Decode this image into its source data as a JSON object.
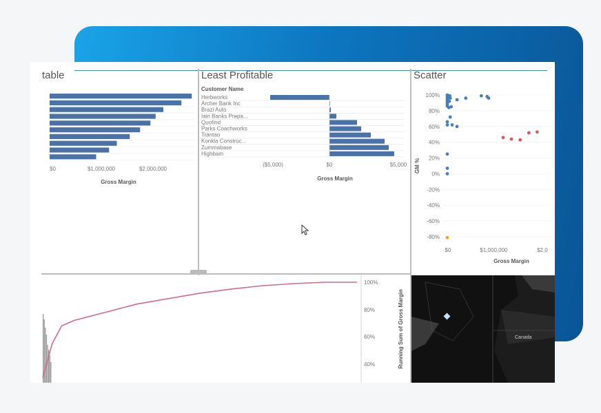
{
  "panels": {
    "most_profitable": {
      "title": "table"
    },
    "least_profitable": {
      "title": "Least Profitable",
      "column_header": "Customer Name"
    },
    "scatter": {
      "title": "Scatter"
    },
    "map": {
      "label": "Canada"
    }
  },
  "chart_data": [
    {
      "type": "bar",
      "title": "table",
      "xlabel": "Gross Margin",
      "x_ticks": [
        "$0",
        "$1,000,000",
        "$2,000,000"
      ],
      "xlim": [
        0,
        2800000
      ],
      "values": [
        2750000,
        2550000,
        2200000,
        2050000,
        1950000,
        1750000,
        1550000,
        1300000,
        1150000,
        900000
      ]
    },
    {
      "type": "bar",
      "title": "Least Profitable",
      "xlabel": "Gross Margin",
      "categories": [
        "Herbworks",
        "Archer Bank Inc",
        "Brazi Auto",
        "Iain Banks Prepa...",
        "Quofind",
        "Parks Coachworks",
        "Trantao",
        "Konkla Construc...",
        "Zummabase",
        "Highbam"
      ],
      "values": [
        -4300,
        0,
        100,
        500,
        2000,
        2300,
        3000,
        4000,
        4300,
        4700
      ],
      "x_ticks": [
        "($5,000)",
        "$0",
        "$5,000"
      ],
      "xlim": [
        -5000,
        5000
      ]
    },
    {
      "type": "scatter",
      "title": "Scatter",
      "xlabel": "Gross Margin",
      "ylabel": "GM %",
      "x_ticks": [
        "$0",
        "$1,000,000",
        "$2,0"
      ],
      "y_ticks": [
        "100%",
        "80%",
        "60%",
        "40%",
        "20%",
        "0%",
        "-20%",
        "-40%",
        "-60%",
        "-80%"
      ],
      "xlim": [
        0,
        2200000
      ],
      "ylim": [
        -90,
        105
      ],
      "series": [
        {
          "color": "#4a7fb5",
          "points": [
            [
              0,
              100
            ],
            [
              0,
              98
            ],
            [
              0,
              96
            ],
            [
              0,
              95
            ],
            [
              0,
              93
            ],
            [
              0,
              91
            ],
            [
              0,
              90
            ],
            [
              0,
              88
            ],
            [
              0,
              86
            ],
            [
              50000,
              99
            ],
            [
              60000,
              96
            ],
            [
              40000,
              92
            ],
            [
              80000,
              85
            ],
            [
              30000,
              84
            ],
            [
              200000,
              94
            ],
            [
              380000,
              96
            ],
            [
              700000,
              99
            ],
            [
              820000,
              98
            ],
            [
              850000,
              96
            ],
            [
              60000,
              72
            ],
            [
              0,
              66
            ],
            [
              0,
              62
            ],
            [
              100000,
              62
            ],
            [
              200000,
              60
            ],
            [
              0,
              25
            ],
            [
              0,
              7
            ],
            [
              0,
              0
            ]
          ]
        },
        {
          "color": "#d45a5a",
          "points": [
            [
              1150000,
              46
            ],
            [
              1320000,
              44
            ],
            [
              1500000,
              43
            ],
            [
              1680000,
              52
            ],
            [
              1850000,
              53
            ]
          ]
        },
        {
          "color": "#e8a040",
          "points": [
            [
              0,
              -81
            ]
          ]
        }
      ]
    },
    {
      "type": "line",
      "ylabel": "Running Sum of Gross Margin",
      "y_ticks": [
        "100%",
        "80%",
        "60%",
        "40%"
      ],
      "ylim": [
        30,
        105
      ],
      "line_color": "#d06b86",
      "points": [
        [
          0,
          30
        ],
        [
          0.03,
          55
        ],
        [
          0.06,
          68
        ],
        [
          0.1,
          72
        ],
        [
          0.2,
          78
        ],
        [
          0.3,
          84
        ],
        [
          0.4,
          88
        ],
        [
          0.5,
          92
        ],
        [
          0.6,
          95
        ],
        [
          0.7,
          97.5
        ],
        [
          0.8,
          99
        ],
        [
          0.9,
          100
        ],
        [
          1.0,
          100
        ]
      ]
    }
  ]
}
